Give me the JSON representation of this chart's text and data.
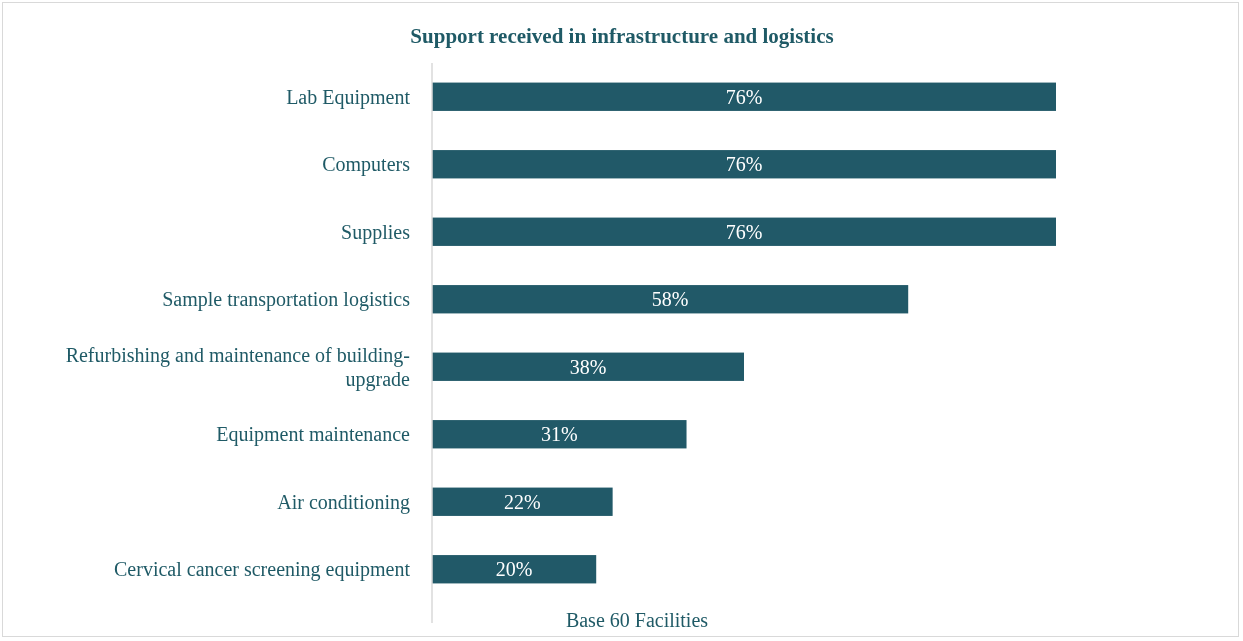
{
  "chart_data": {
    "type": "bar",
    "orientation": "horizontal",
    "title": "Support received in infrastructure and logistics",
    "categories": [
      "Lab Equipment",
      "Computers",
      "Supplies",
      "Sample transportation logistics",
      "Refurbishing and maintenance of building- upgrade",
      "Equipment maintenance",
      "Air conditioning",
      "Cervical cancer screening equipment"
    ],
    "values": [
      76,
      76,
      76,
      58,
      38,
      31,
      22,
      20
    ],
    "color": "#215968",
    "data_labels": true,
    "value_labels": [
      "76%",
      "76%",
      "76%",
      "58%",
      "38%",
      "31%",
      "22%",
      "20%"
    ],
    "annotations": [
      "Base 60 Facilities"
    ]
  }
}
